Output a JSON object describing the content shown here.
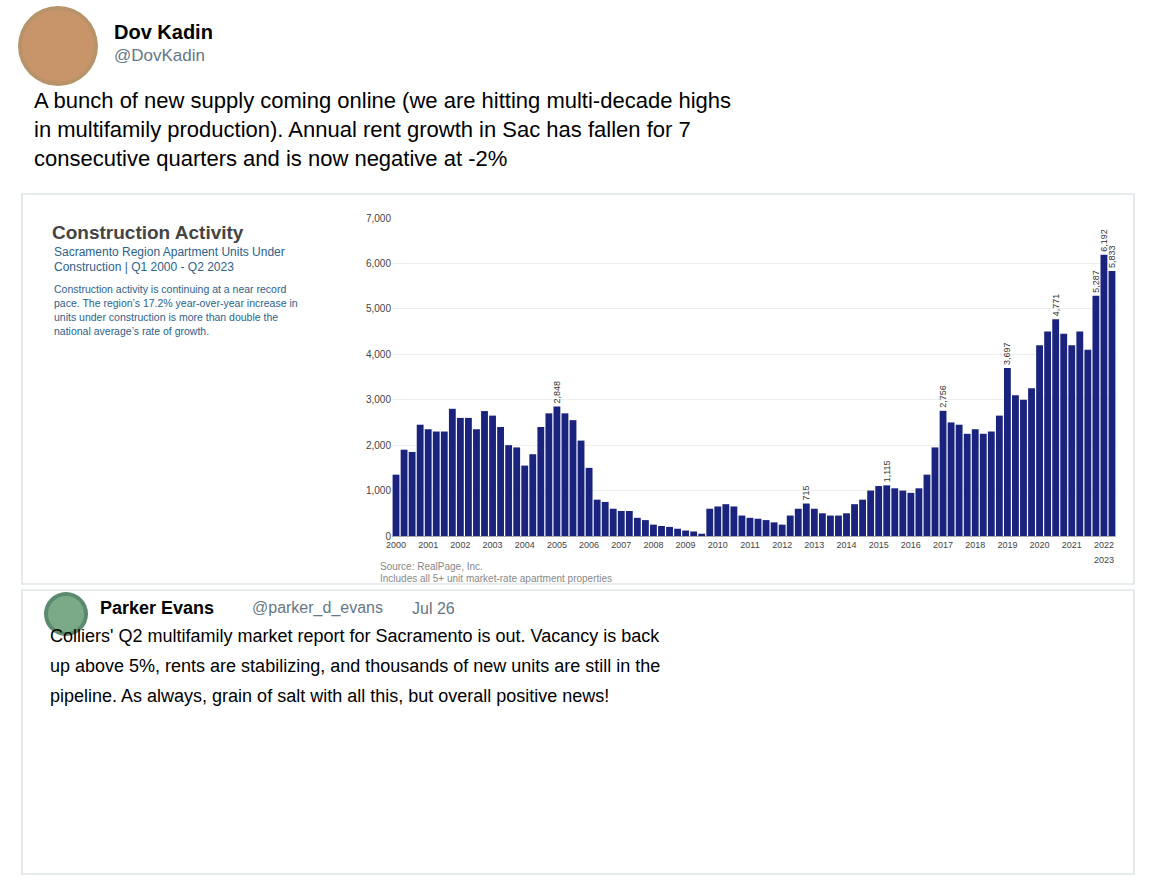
{
  "chart_data": {
    "type": "bar",
    "title": "Construction Activity",
    "subtitle": [
      "Sacramento Region Apartment Units Under",
      "Construction | Q1 2000 - Q2 2023"
    ],
    "annotations": [
      "Dov Kadin",
      "@DovKadin",
      "A bunch of new supply coming online (we are hitting multi-decade highs",
      "in multifamily production). Annual rent growth in Sac has fallen for 7",
      "consecutive quarters and is now negative at -2%",
      "Construction activity is continuing at a near record",
      "pace. The region’s 17.2% year-over-year increase in",
      "units under construction is more than double the",
      "national average’s rate of growth.",
      "Source: RealPage, Inc.",
      "Includes all 5+ unit market-rate apartment properties",
      "Parker Evans",
      "@parker_d_evans",
      "Jul 26",
      "Colliers' Q2 multifamily market report for Sacramento is out. Vacancy is back",
      "up above 5%, rents are stabilizing, and thousands of new units are still in the",
      "pipeline. As always, grain of salt with all this, but overall positive news!",
      {
        "text": "2023",
        "x": 88
      }
    ],
    "categories": [
      "2000",
      null,
      null,
      null,
      "2001",
      null,
      null,
      null,
      "2002",
      null,
      null,
      null,
      "2003",
      null,
      null,
      null,
      "2004",
      null,
      null,
      null,
      "2005",
      null,
      null,
      null,
      "2006",
      null,
      null,
      null,
      "2007",
      null,
      null,
      null,
      "2008",
      null,
      null,
      null,
      "2009",
      null,
      null,
      null,
      "2010",
      null,
      null,
      null,
      "2011",
      null,
      null,
      null,
      "2012",
      null,
      null,
      null,
      "2013",
      null,
      null,
      null,
      "2014",
      null,
      null,
      null,
      "2015",
      null,
      null,
      null,
      "2016",
      null,
      null,
      null,
      "2017",
      null,
      null,
      null,
      "2018",
      null,
      null,
      null,
      "2019",
      null,
      null,
      null,
      "2020",
      null,
      null,
      null,
      "2021",
      null,
      null,
      null,
      "2022",
      null
    ],
    "values": [
      1350,
      1900,
      1850,
      2450,
      2350,
      2300,
      2300,
      2800,
      2600,
      2600,
      2350,
      2750,
      2650,
      2400,
      2000,
      1950,
      1550,
      1800,
      2400,
      2700,
      2848,
      2700,
      2550,
      2100,
      1500,
      800,
      750,
      600,
      550,
      550,
      400,
      350,
      250,
      220,
      200,
      160,
      120,
      100,
      50,
      600,
      650,
      700,
      650,
      450,
      400,
      380,
      350,
      300,
      250,
      450,
      600,
      715,
      600,
      500,
      450,
      450,
      500,
      700,
      800,
      1000,
      1100,
      1115,
      1050,
      1000,
      950,
      1050,
      1350,
      1950,
      2756,
      2500,
      2450,
      2250,
      2350,
      2250,
      2300,
      2650,
      3697,
      3100,
      3000,
      3250,
      4200,
      4500,
      4771,
      4450,
      4200,
      4500,
      4100,
      5287,
      6192,
      5833
    ],
    "value_labels": [
      null,
      null,
      null,
      null,
      null,
      null,
      null,
      null,
      null,
      null,
      null,
      null,
      null,
      null,
      null,
      null,
      null,
      null,
      null,
      null,
      "2,848",
      null,
      null,
      null,
      null,
      null,
      null,
      null,
      null,
      null,
      null,
      null,
      null,
      null,
      null,
      null,
      null,
      null,
      null,
      null,
      null,
      null,
      null,
      null,
      null,
      null,
      null,
      null,
      null,
      null,
      null,
      "715",
      null,
      null,
      null,
      null,
      null,
      null,
      null,
      null,
      null,
      "1,115",
      null,
      null,
      null,
      null,
      null,
      null,
      "2,756",
      null,
      null,
      null,
      null,
      null,
      null,
      null,
      "3,697",
      null,
      null,
      null,
      null,
      null,
      "4,771",
      null,
      null,
      null,
      null,
      "5,287",
      "6,192",
      "5,833"
    ],
    "data_labels": true,
    "color": "#1a237e",
    "ylim": [
      0,
      7000
    ],
    "yticks": [
      0,
      {
        "value": 1000,
        "label": "1,000"
      },
      {
        "value": 2000,
        "label": "2,000"
      },
      {
        "value": 3000,
        "label": "3,000"
      },
      {
        "value": 4000,
        "label": "4,000"
      },
      {
        "value": 5000,
        "label": "5,000"
      },
      {
        "value": 6000,
        "label": "6,000"
      },
      {
        "value": 7000,
        "label": "7,000"
      }
    ],
    "grid": true
  }
}
